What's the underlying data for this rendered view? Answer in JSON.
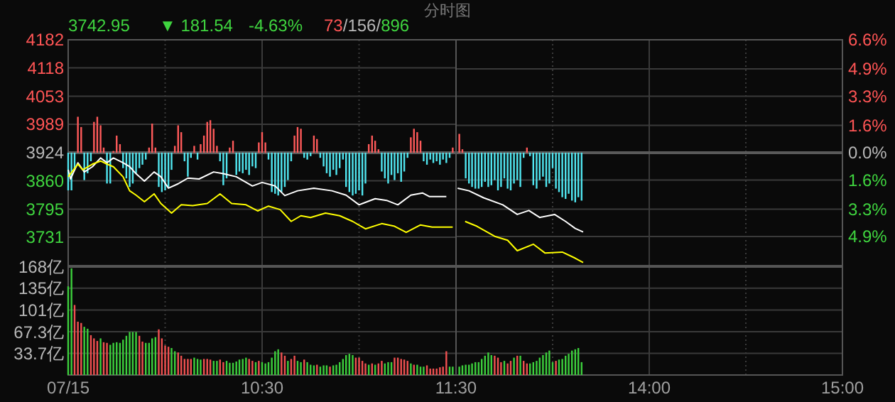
{
  "chart_data": [
    {
      "type": "line",
      "title": "分时图",
      "annotations": [
        "3742.95",
        "▼ 181.54",
        "-4.63%",
        "73/156/896"
      ],
      "x": [
        9.5,
        9.517,
        9.533,
        9.55,
        9.567,
        9.583,
        9.6,
        9.617,
        9.633,
        9.65,
        9.667,
        9.683,
        9.7,
        9.717,
        9.733,
        9.75,
        9.767,
        9.783,
        9.8,
        9.817,
        9.833,
        9.85,
        9.867,
        9.883,
        9.9,
        9.917,
        9.933,
        9.95,
        9.967,
        9.983,
        10,
        10.017,
        10.033,
        10.05,
        10.067,
        10.083,
        10.1,
        10.117,
        10.133,
        10.15,
        10.167,
        10.183,
        10.2,
        10.217,
        10.233,
        10.25,
        10.267,
        10.283,
        10.3,
        10.317,
        10.333,
        10.35,
        10.367,
        10.383,
        10.4,
        10.417,
        10.433,
        10.45,
        10.467,
        10.483,
        10.5,
        10.517,
        10.533,
        10.55,
        10.567,
        10.583,
        10.6,
        10.617,
        10.633,
        10.65,
        10.667,
        10.683,
        10.7,
        10.717,
        10.733,
        10.75,
        10.767,
        10.783,
        10.8,
        10.817,
        10.833,
        10.85,
        10.867,
        10.883,
        10.9,
        10.917,
        10.933,
        10.95,
        10.967,
        10.983,
        11,
        11.017,
        11.033,
        11.05,
        11.067,
        11.083,
        11.1,
        11.117,
        11.133,
        11.15,
        11.167,
        11.183,
        11.2,
        11.217,
        11.233,
        11.25,
        11.267,
        11.283,
        11.3,
        11.317,
        11.333,
        11.35,
        11.367,
        11.383,
        11.4,
        11.417,
        11.433,
        11.45,
        11.467,
        11.483
      ],
      "xlim": [
        9.5,
        11.5
      ],
      "xticks": [
        {
          "value": 9.5,
          "label": null
        },
        {
          "value": 10,
          "label": null
        },
        {
          "value": 10.5,
          "label": null
        },
        {
          "value": 11,
          "label": null
        },
        {
          "value": 11.5,
          "label": null
        }
      ],
      "ylim": [
        3666,
        4182
      ],
      "yticks": [
        4182,
        4118,
        4053,
        3989,
        3924,
        3860,
        3795,
        3731
      ],
      "y2lim": [
        -6.6,
        6.6
      ],
      "grid": true,
      "tick_labels": "y",
      "ref_lines": [
        {
          "axis": "y",
          "value": 3924,
          "color": "#5a5a5a"
        }
      ],
      "series": [
        {
          "type": "bar",
          "axis": "y2",
          "color": "#ff5a5a",
          "values": [
            null,
            null,
            null,
            2.1,
            1.5,
            null,
            null,
            null,
            1.8,
            2.1,
            1.6,
            0.3,
            null,
            null,
            0.1,
            1.0,
            0.5,
            null,
            null,
            null,
            null,
            null,
            null,
            null,
            null,
            0.3,
            1.7,
            0.3,
            null,
            null,
            null,
            null,
            null,
            0.4,
            1.6,
            1.2,
            null,
            null,
            null,
            0.4,
            null,
            0.5,
            1.0,
            1.8,
            1.9,
            1.4,
            0.4,
            null,
            null,
            null,
            0.3,
            0.7,
            null,
            null,
            null,
            null,
            null,
            null,
            null,
            0.6,
            1.2,
            0.6,
            null,
            null,
            null,
            null,
            null,
            null,
            null,
            null,
            1.0,
            1.5,
            1.4,
            null,
            null,
            null,
            1.0,
            0.8,
            null,
            null,
            null,
            null,
            null,
            null,
            null,
            null,
            null,
            null,
            null,
            null,
            null,
            null,
            null,
            0.5,
            1.0,
            0.7,
            0.2,
            null,
            null,
            null,
            null,
            null,
            null,
            null,
            null,
            null,
            0.9,
            1.4,
            1.2,
            0.7,
            null,
            null,
            null,
            null,
            null,
            null,
            null,
            null,
            null,
            0.3
          ]
        },
        {
          "type": "bar",
          "axis": "y2",
          "color": "#50e6f0",
          "values": [
            -2.2,
            -2.2,
            -1.0,
            null,
            null,
            -1.6,
            -1.2,
            -0.5,
            null,
            null,
            null,
            null,
            -1.8,
            -1.8,
            null,
            null,
            null,
            -0.9,
            -1.5,
            -2.0,
            -1.8,
            -1.2,
            -0.9,
            -0.7,
            -0.4,
            null,
            null,
            null,
            -2.0,
            -2.3,
            -2.2,
            -2.0,
            -1.0,
            null,
            null,
            null,
            -0.5,
            -1.4,
            -0.3,
            null,
            -0.4,
            null,
            null,
            null,
            null,
            null,
            null,
            -0.5,
            -1.9,
            -1.5,
            null,
            null,
            -1.3,
            -1.1,
            -1.2,
            -1.0,
            -1.3,
            -0.8,
            -0.9,
            null,
            null,
            null,
            -0.4,
            -2.3,
            -2.4,
            -2.5,
            -2.3,
            -2.0,
            -1.6,
            -0.5,
            null,
            null,
            null,
            -0.3,
            -0.4,
            -0.2,
            null,
            null,
            -0.3,
            -0.8,
            -1.2,
            -1.4,
            -1.0,
            -1.3,
            -0.9,
            -0.4,
            -2.0,
            -2.3,
            -2.5,
            -2.4,
            -2.2,
            -2.5,
            -1.8,
            null,
            null,
            null,
            null,
            -1.1,
            -1.5,
            -1.8,
            -1.3,
            -1.6,
            -1.2,
            -1.7,
            -1.1,
            -0.3,
            null,
            null,
            null,
            null,
            -0.5,
            -0.7,
            -0.4,
            -0.6,
            -0.5,
            -0.7,
            -0.4,
            -0.6,
            -0.3,
            null
          ]
        },
        {
          "type": "line",
          "color": "#ffffff",
          "x": [
            9.5,
            9.512,
            9.55,
            9.583,
            9.625,
            9.667,
            9.7,
            9.733,
            9.783,
            9.817,
            9.85,
            9.893,
            9.943,
            9.978,
            10.017,
            10.067,
            10.117,
            10.175,
            10.25,
            10.3,
            10.367,
            10.45,
            10.5,
            10.567,
            10.617,
            10.683,
            10.767,
            10.86,
            10.933,
            11,
            11.083,
            11.142,
            11.2,
            11.267,
            11.327,
            11.362,
            11.45
          ],
          "values": [
            3885,
            3864,
            3901,
            3880,
            3892,
            3912,
            3901,
            3912,
            3901,
            3892,
            3876,
            3859,
            3880,
            3869,
            3843,
            3853,
            3866,
            3864,
            3880,
            3876,
            3869,
            3848,
            3856,
            3848,
            3826,
            3837,
            3843,
            3837,
            3827,
            3805,
            3819,
            3815,
            3805,
            3827,
            3832,
            3824,
            3824
          ]
        },
        {
          "type": "line",
          "color": "#ffff00",
          "x": [
            9.5,
            9.55,
            9.575,
            9.625,
            9.667,
            9.7,
            9.733,
            9.783,
            9.817,
            9.85,
            9.893,
            9.943,
            9.978,
            10.033,
            10.083,
            10.142,
            10.217,
            10.283,
            10.343,
            10.417,
            10.477,
            10.533,
            10.593,
            10.65,
            10.7,
            10.75,
            10.827,
            10.9,
            10.967,
            11.033,
            11.117,
            11.183,
            11.243,
            11.317,
            11.377,
            11.483
          ],
          "values": [
            3869,
            3898,
            3885,
            3898,
            3905,
            3898,
            3892,
            3869,
            3837,
            3827,
            3812,
            3830,
            3808,
            3786,
            3805,
            3803,
            3808,
            3830,
            3808,
            3805,
            3791,
            3802,
            3794,
            3767,
            3780,
            3776,
            3786,
            3780,
            3767,
            3750,
            3762,
            3756,
            3742,
            3759,
            3754,
            3754
          ]
        }
      ]
    },
    {
      "type": "line",
      "x": [
        13.017,
        13.033,
        13.05,
        13.067,
        13.083,
        13.1,
        13.117,
        13.133,
        13.15,
        13.167,
        13.183,
        13.2,
        13.217,
        13.233,
        13.25,
        13.267,
        13.283,
        13.3,
        13.317,
        13.333,
        13.35,
        13.367,
        13.383,
        13.4,
        13.417,
        13.433,
        13.45,
        13.467,
        13.483,
        13.5,
        13.517,
        13.533,
        13.55,
        13.567,
        13.583,
        13.6,
        13.617,
        13.633,
        13.65
      ],
      "xlim": [
        13,
        15
      ],
      "xticks": [
        {
          "value": 13,
          "label": null
        },
        {
          "value": 13.5,
          "label": null
        },
        {
          "value": 14,
          "label": null
        },
        {
          "value": 14.5,
          "label": null
        },
        {
          "value": 15,
          "label": null
        }
      ],
      "ylim": [
        3666,
        4182
      ],
      "y2lim": [
        -6.6,
        6.6
      ],
      "y2ticks": [
        {
          "value": 6.6,
          "label": "6.6%"
        },
        {
          "value": 4.9,
          "label": "4.9%"
        },
        {
          "value": 3.3,
          "label": "3.3%"
        },
        {
          "value": 1.6,
          "label": "1.6%"
        },
        {
          "value": 0,
          "label": "0.0%"
        },
        {
          "value": -1.6,
          "label": "1.6%"
        },
        {
          "value": -3.3,
          "label": "3.3%"
        },
        {
          "value": -4.9,
          "label": "4.9%"
        }
      ],
      "grid": true,
      "tick_labels": "y",
      "ref_lines": [
        {
          "axis": "y",
          "value": 3924,
          "color": "#5a5a5a"
        }
      ],
      "series": [
        {
          "type": "bar",
          "axis": "y2",
          "color": "#ff5a5a",
          "values": [
            1.1,
            0.2,
            null,
            null,
            null,
            null,
            null,
            null,
            null,
            null,
            null,
            null,
            null,
            null,
            null,
            null,
            null,
            null,
            null,
            null,
            null,
            0.3,
            null,
            null,
            null,
            null,
            null,
            null,
            null,
            null,
            null,
            null,
            null,
            null,
            null,
            null,
            null,
            null,
            null
          ]
        },
        {
          "type": "bar",
          "axis": "y2",
          "color": "#50e6f0",
          "values": [
            null,
            null,
            -1.5,
            -1.8,
            -2.0,
            -2.1,
            -2.1,
            -2.0,
            -1.7,
            -2.0,
            -1.9,
            -1.6,
            -2.2,
            -2.0,
            -1.5,
            -2.1,
            -2.2,
            -1.8,
            -1.6,
            -2.0,
            -0.3,
            null,
            -0.2,
            -1.9,
            -2.1,
            -1.6,
            -1.4,
            -2.0,
            -1.8,
            -0.9,
            -2.1,
            -2.3,
            -2.6,
            -2.7,
            -2.4,
            -2.8,
            -2.9,
            -2.6,
            -2.8
          ]
        },
        {
          "type": "line",
          "color": "#ffffff",
          "x": [
            13.008,
            13.067,
            13.143,
            13.242,
            13.317,
            13.377,
            13.433,
            13.51,
            13.567,
            13.617,
            13.658
          ],
          "values": [
            3843,
            3837,
            3821,
            3805,
            3783,
            3792,
            3776,
            3783,
            3767,
            3751,
            3743
          ]
        },
        {
          "type": "line",
          "color": "#ffff00",
          "x": [
            13.047,
            13.108,
            13.2,
            13.267,
            13.317,
            13.4,
            13.46,
            13.55,
            13.617,
            13.658
          ],
          "values": [
            3767,
            3756,
            3733,
            3724,
            3700,
            3715,
            3695,
            3697,
            3683,
            3673
          ]
        }
      ]
    },
    {
      "type": "bar",
      "x": [
        9.5,
        9.517,
        9.533,
        9.55,
        9.567,
        9.583,
        9.6,
        9.617,
        9.633,
        9.65,
        9.667,
        9.683,
        9.7,
        9.717,
        9.733,
        9.75,
        9.767,
        9.783,
        9.8,
        9.817,
        9.833,
        9.85,
        9.867,
        9.883,
        9.9,
        9.917,
        9.933,
        9.95,
        9.967,
        9.983,
        10,
        10.017,
        10.033,
        10.05,
        10.067,
        10.083,
        10.1,
        10.117,
        10.133,
        10.15,
        10.167,
        10.183,
        10.2,
        10.217,
        10.233,
        10.25,
        10.267,
        10.283,
        10.3,
        10.317,
        10.333,
        10.35,
        10.367,
        10.383,
        10.4,
        10.417,
        10.433,
        10.45,
        10.467,
        10.483,
        10.5,
        10.517,
        10.533,
        10.55,
        10.567,
        10.583,
        10.6,
        10.617,
        10.633,
        10.65,
        10.667,
        10.683,
        10.7,
        10.717,
        10.733,
        10.75,
        10.767,
        10.783,
        10.8,
        10.817,
        10.833,
        10.85,
        10.867,
        10.883,
        10.9,
        10.917,
        10.933,
        10.95,
        10.967,
        10.983,
        11,
        11.017,
        11.033,
        11.05,
        11.067,
        11.083,
        11.1,
        11.117,
        11.133,
        11.15,
        11.167,
        11.183,
        11.2,
        11.217,
        11.233,
        11.25,
        11.267,
        11.283,
        11.3,
        11.317,
        11.333,
        11.35,
        11.367,
        11.383,
        11.4,
        11.417,
        11.433,
        11.45,
        11.467,
        11.483
      ],
      "xlim": [
        9.5,
        11.5
      ],
      "xticks": [
        {
          "value": 9.5,
          "label": "07/15"
        },
        {
          "value": 10,
          "label": null
        },
        {
          "value": 10.5,
          "label": "10:30"
        },
        {
          "value": 11,
          "label": null
        },
        {
          "value": 11.5,
          "label": "11:30"
        }
      ],
      "ylim": [
        0,
        168
      ],
      "yticks": [
        {
          "value": 33.7,
          "label": "33.7亿"
        },
        {
          "value": 67.3,
          "label": "67.3亿"
        },
        {
          "value": 101,
          "label": "101亿"
        },
        {
          "value": 135,
          "label": "135亿"
        },
        {
          "value": 168,
          "label": "168亿"
        }
      ],
      "grid": true,
      "values": [
        138,
        166,
        109,
        83,
        81,
        75,
        72,
        62,
        57,
        53,
        57,
        51,
        50,
        47,
        50,
        51,
        50,
        55,
        61,
        67,
        67,
        67,
        61,
        52,
        50,
        50,
        57,
        59,
        71,
        57,
        46,
        44,
        42,
        37,
        35,
        30,
        25,
        25,
        25,
        27,
        25,
        24,
        25,
        25,
        24,
        22,
        22,
        24,
        20,
        22,
        19,
        19,
        21,
        24,
        25,
        27,
        25,
        22,
        20,
        22,
        20,
        18,
        20,
        27,
        37,
        40,
        35,
        30,
        22,
        25,
        30,
        22,
        20,
        24,
        20,
        16,
        15,
        16,
        13,
        15,
        15,
        13,
        15,
        16,
        20,
        25,
        31,
        33,
        31,
        27,
        27,
        22,
        18,
        16,
        18,
        16,
        18,
        22,
        18,
        20,
        20,
        27,
        27,
        25,
        24,
        22,
        18,
        16,
        16,
        13,
        13,
        15,
        10,
        10,
        10,
        12,
        13,
        37,
        13,
        13
      ],
      "colors": [
        "#3ccf3c",
        "#3ccf3c",
        "#f05050",
        "#f05050",
        "#f05050",
        "#3ccf3c",
        "#3ccf3c",
        "#f05050",
        "#f05050",
        "#f05050",
        "#3ccf3c",
        "#f05050",
        "#f05050",
        "#3ccf3c",
        "#3ccf3c",
        "#3ccf3c",
        "#3ccf3c",
        "#3ccf3c",
        "#3ccf3c",
        "#3ccf3c",
        "#3ccf3c",
        "#3ccf3c",
        "#f05050",
        "#f05050",
        "#3ccf3c",
        "#3ccf3c",
        "#3ccf3c",
        "#3ccf3c",
        "#f05050",
        "#f05050",
        "#f05050",
        "#f05050",
        "#3ccf3c",
        "#3ccf3c",
        "#f05050",
        "#f05050",
        "#f05050",
        "#f05050",
        "#f05050",
        "#3ccf3c",
        "#3ccf3c",
        "#3ccf3c",
        "#f05050",
        "#f05050",
        "#f05050",
        "#3ccf3c",
        "#3ccf3c",
        "#f05050",
        "#f05050",
        "#3ccf3c",
        "#3ccf3c",
        "#3ccf3c",
        "#3ccf3c",
        "#3ccf3c",
        "#3ccf3c",
        "#3ccf3c",
        "#f05050",
        "#f05050",
        "#3ccf3c",
        "#f05050",
        "#3ccf3c",
        "#3ccf3c",
        "#3ccf3c",
        "#3ccf3c",
        "#3ccf3c",
        "#3ccf3c",
        "#f05050",
        "#f05050",
        "#3ccf3c",
        "#f05050",
        "#f05050",
        "#3ccf3c",
        "#3ccf3c",
        "#f05050",
        "#3ccf3c",
        "#3ccf3c",
        "#3ccf3c",
        "#f05050",
        "#3ccf3c",
        "#3ccf3c",
        "#3ccf3c",
        "#f05050",
        "#3ccf3c",
        "#3ccf3c",
        "#3ccf3c",
        "#3ccf3c",
        "#3ccf3c",
        "#3ccf3c",
        "#3ccf3c",
        "#f05050",
        "#f05050",
        "#f05050",
        "#f05050",
        "#3ccf3c",
        "#f05050",
        "#3ccf3c",
        "#f05050",
        "#f05050",
        "#3ccf3c",
        "#3ccf3c",
        "#3ccf3c",
        "#f05050",
        "#f05050",
        "#f05050",
        "#f05050",
        "#f05050",
        "#3ccf3c",
        "#f05050",
        "#3ccf3c",
        "#3ccf3c",
        "#3ccf3c",
        "#f05050",
        "#f05050",
        "#f05050",
        "#f05050",
        "#f05050",
        "#f05050",
        "#f05050",
        "#3ccf3c",
        "#3ccf3c"
      ]
    },
    {
      "type": "bar",
      "x": [
        13.017,
        13.033,
        13.05,
        13.067,
        13.083,
        13.1,
        13.117,
        13.133,
        13.15,
        13.167,
        13.183,
        13.2,
        13.217,
        13.233,
        13.25,
        13.267,
        13.283,
        13.3,
        13.317,
        13.333,
        13.35,
        13.367,
        13.383,
        13.4,
        13.417,
        13.433,
        13.45,
        13.467,
        13.483,
        13.5,
        13.517,
        13.533,
        13.55,
        13.567,
        13.583,
        13.6,
        13.617,
        13.633,
        13.65
      ],
      "xlim": [
        13,
        15
      ],
      "xticks": [
        {
          "value": 13,
          "label": null
        },
        {
          "value": 13.5,
          "label": null
        },
        {
          "value": 14,
          "label": "14:00"
        },
        {
          "value": 14.5,
          "label": null
        },
        {
          "value": 15,
          "label": "15:00"
        }
      ],
      "ylim": [
        0,
        168
      ],
      "yticks": [
        {
          "value": 33.7,
          "label": null
        },
        {
          "value": 67.3,
          "label": null
        },
        {
          "value": 101,
          "label": null
        },
        {
          "value": 135,
          "label": null
        },
        {
          "value": 168,
          "label": null
        }
      ],
      "grid": true,
      "tick_labels": "x",
      "values": [
        13,
        15,
        16,
        16,
        18,
        20,
        20,
        25,
        30,
        35,
        31,
        30,
        27,
        20,
        22,
        18,
        22,
        27,
        30,
        30,
        22,
        18,
        18,
        20,
        22,
        27,
        31,
        35,
        38,
        20,
        22,
        24,
        25,
        30,
        33,
        38,
        40,
        42,
        20
      ],
      "colors": [
        "#3ccf3c",
        "#3ccf3c",
        "#3ccf3c",
        "#3ccf3c",
        "#3ccf3c",
        "#3ccf3c",
        "#3ccf3c",
        "#3ccf3c",
        "#3ccf3c",
        "#3ccf3c",
        "#3ccf3c",
        "#f05050",
        "#f05050",
        "#f05050",
        "#3ccf3c",
        "#f05050",
        "#f05050",
        "#3ccf3c",
        "#f05050",
        "#3ccf3c",
        "#f05050",
        "#f05050",
        "#3ccf3c",
        "#3ccf3c",
        "#3ccf3c",
        "#3ccf3c",
        "#3ccf3c",
        "#3ccf3c",
        "#3ccf3c",
        "#3ccf3c",
        "#f05050",
        "#3ccf3c",
        "#3ccf3c",
        "#3ccf3c",
        "#3ccf3c",
        "#3ccf3c",
        "#3ccf3c",
        "#3ccf3c",
        "#3ccf3c"
      ]
    }
  ]
}
